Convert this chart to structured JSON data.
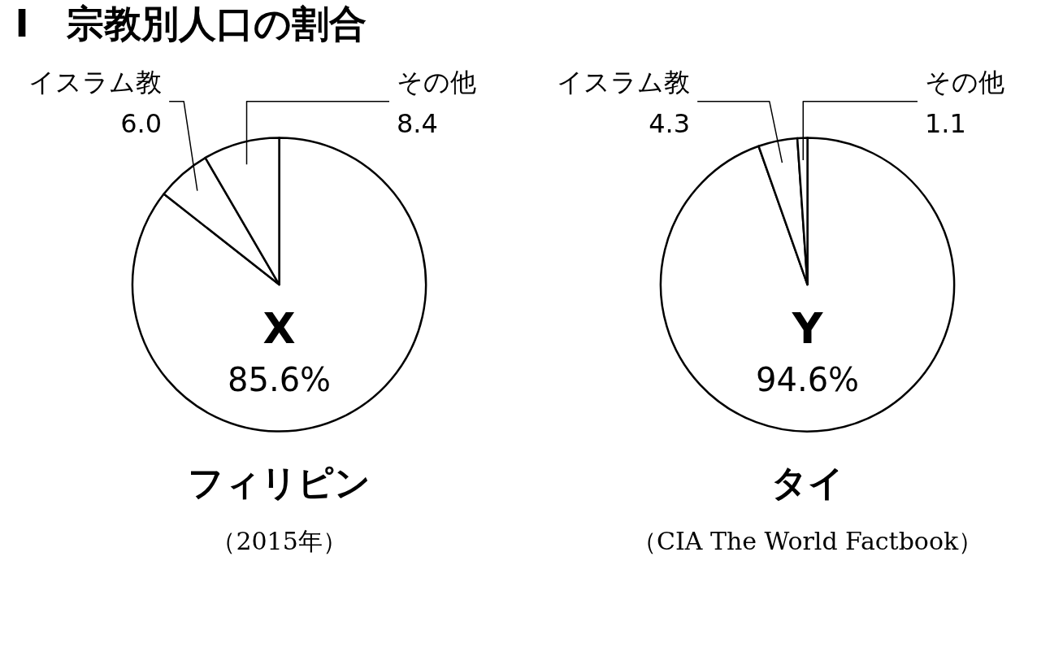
{
  "chart_data": [
    {
      "type": "pie",
      "title": "Ⅰ　宗教別人口の割合",
      "xlabel": "フィリピン",
      "categories": [
        "X",
        "イスラム教",
        "その他"
      ],
      "values": [
        85.6,
        6.0,
        8.4
      ],
      "value_labels": [
        "85.6%",
        "6.0",
        "8.4"
      ],
      "colors": [
        "#ffffff",
        "#ffffff",
        "#ffffff"
      ],
      "annotations": [
        "（2015年）"
      ]
    },
    {
      "type": "pie",
      "xlabel": "タイ",
      "categories": [
        "Y",
        "イスラム教",
        "その他"
      ],
      "values": [
        94.6,
        4.3,
        1.1
      ],
      "value_labels": [
        "94.6%",
        "4.3",
        "1.1"
      ],
      "colors": [
        "#ffffff",
        "#ffffff",
        "#ffffff"
      ],
      "annotations": [
        "（CIA The World Factbook）"
      ]
    }
  ]
}
